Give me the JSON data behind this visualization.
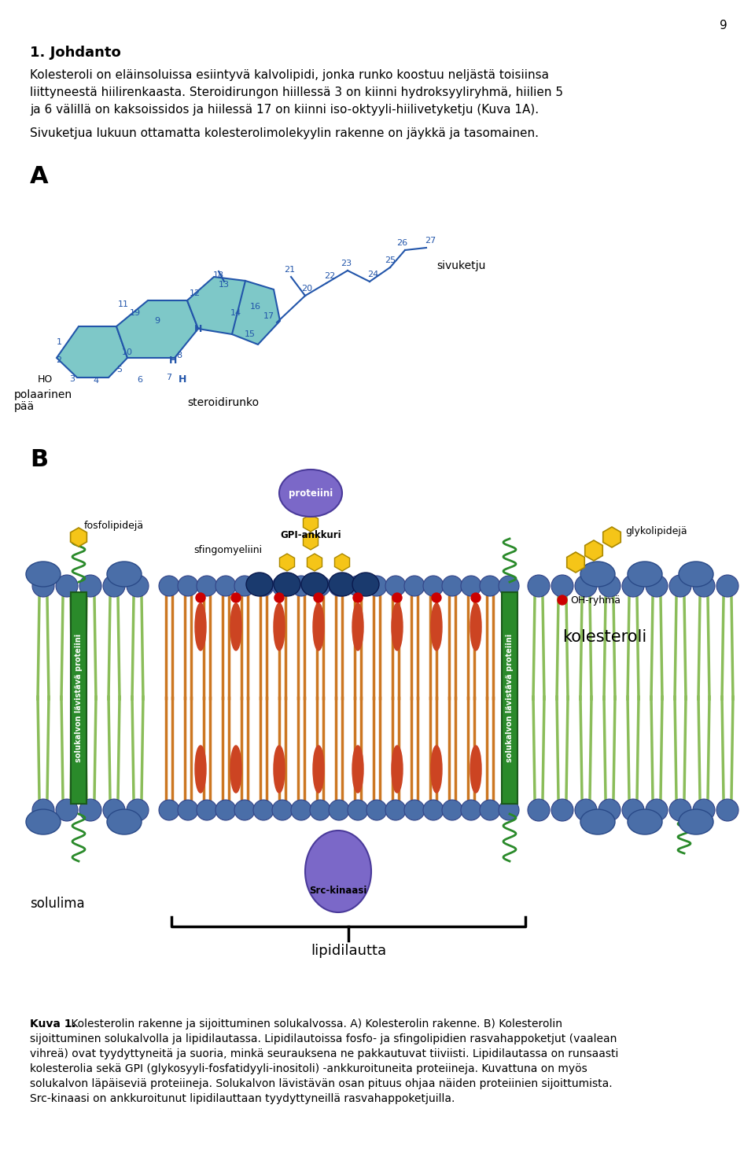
{
  "page_number": "9",
  "title_bold": "1. Johdanto",
  "para1_line1": "Kolesteroli on eläinsoluissa esiintyvä kalvolipidi, jonka runko koostuu neljästä toisiinsa",
  "para1_line2": "liittyneestä hiilirenkaasta. Steroidirungon hiillessä 3 on kiinni hydroksyyliryhmä, hiilien 5",
  "para1_line3": "ja 6 välillä on kaksoissidos ja hiilessä 17 on kiinni iso-oktyyli-hiilivetyketju (Kuva 1A).",
  "para2": "Sivuketjua lukuun ottamatta kolesterolimolekyylin rakenne on jäykkä ja tasomainen.",
  "label_A": "A",
  "label_B": "B",
  "steroid_color": "#7EC8C8",
  "steroid_outline": "#2255AA",
  "num_color": "#2255AA",
  "sivuketju_label": "sivuketju",
  "steroidrunko_label": "steroidirunko",
  "polaarinen_label": "polaarinen",
  "paa_label": "pää",
  "bg_color": "#FFFFFF",
  "caption_bold": "Kuva 1.",
  "caption_rest": " Kolesterolin rakenne ja sijoittuminen solukalvossa. A) Kolesterolin rakenne. B) Kolesterolin sijoittuminen solukalvolla ja lipidilautassa. Lipidilautoissa fosfo- ja sfingolipidien rasvahappoketjut (vaalean vihreä) ovat tyydyttyneitä ja suoria, minkä seurauksena ne pakkautuvat tiiviisti. Lipidilautassa on runsaasti kolesterolia sekä GPI (glykosyyli-fosfatidyyli-inositoli) -ankkuroituneita proteiineja. Kuvattuna on myös solukalvon läpäiseviä proteiineja. Solukalvon lävistävän osan pituus ohjaa näiden proteiinien sijoittumista. Src-kinaasi on ankkuroitunut lipidilauttaan tyydyttyneillä rasvahappoketjuilla.",
  "lipidilautta_label": "lipidilautta",
  "solulima_label": "solulima",
  "kolesteroli_label": "kolesteroli",
  "OH_label": "OH-ryhmä",
  "proteiini_label": "proteiini",
  "gpi_label": "GPI-ankkuri",
  "sfingo_label": "sfingomyeliini",
  "fosfo_label": "fosfolipidejä",
  "glyko_label": "glykolipidejä",
  "src_label": "Src-kinaasi",
  "solukalvon_label": "solukalvon lävistävä proteiini",
  "blue_head": "#4A6EA8",
  "green_tail": "#8BBD5A",
  "orange_tail": "#CC7722",
  "red_dot": "#CC0000",
  "dark_blue_head": "#1A3A6E",
  "yellow_hex": "#F5C518",
  "purple_blob": "#7B68C8",
  "green_protein": "#2A8A2A",
  "chol_color": "#CC4422",
  "head_outline": "#334488",
  "protein_outline": "#4A3A9A",
  "green_dark": "#1A5A1A"
}
